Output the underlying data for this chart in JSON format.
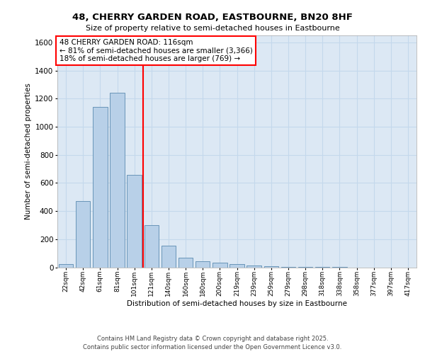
{
  "title_line1": "48, CHERRY GARDEN ROAD, EASTBOURNE, BN20 8HF",
  "title_line2": "Size of property relative to semi-detached houses in Eastbourne",
  "xlabel": "Distribution of semi-detached houses by size in Eastbourne",
  "ylabel": "Number of semi-detached properties",
  "categories": [
    "22sqm",
    "42sqm",
    "61sqm",
    "81sqm",
    "101sqm",
    "121sqm",
    "140sqm",
    "160sqm",
    "180sqm",
    "200sqm",
    "219sqm",
    "239sqm",
    "259sqm",
    "279sqm",
    "298sqm",
    "318sqm",
    "338sqm",
    "358sqm",
    "377sqm",
    "397sqm",
    "417sqm"
  ],
  "values": [
    25,
    470,
    1140,
    1240,
    660,
    300,
    155,
    70,
    42,
    32,
    25,
    15,
    8,
    4,
    2,
    1,
    1,
    0,
    0,
    0,
    0
  ],
  "bar_color": "#b8d0e8",
  "bar_edgecolor": "#5a8ab0",
  "property_bar_index": 5,
  "annotation_title": "48 CHERRY GARDEN ROAD: 116sqm",
  "annotation_line2": "← 81% of semi-detached houses are smaller (3,366)",
  "annotation_line3": "18% of semi-detached houses are larger (769) →",
  "ylim_max": 1650,
  "yticks": [
    0,
    200,
    400,
    600,
    800,
    1000,
    1200,
    1400,
    1600
  ],
  "grid_color": "#c4d8ec",
  "plot_bg_color": "#dce8f4",
  "footer_line1": "Contains HM Land Registry data © Crown copyright and database right 2025.",
  "footer_line2": "Contains public sector information licensed under the Open Government Licence v3.0."
}
